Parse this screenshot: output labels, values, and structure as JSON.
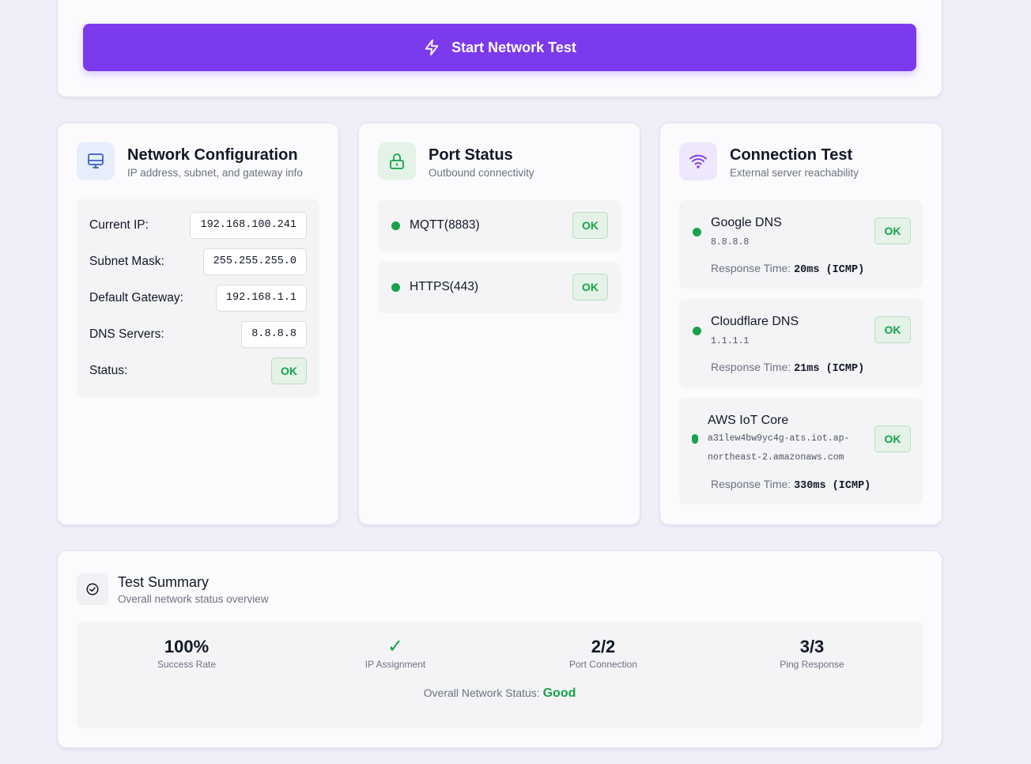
{
  "colors": {
    "accent": "#7c3aed",
    "ok_green": "#16a34a",
    "background": "#f1eef9"
  },
  "start_button": {
    "label": "Start Network Test",
    "icon": "lightning-icon"
  },
  "network_config": {
    "title": "Network Configuration",
    "subtitle": "IP address, subnet, and gateway info",
    "icon": "monitor-icon",
    "rows": [
      {
        "label": "Current IP:",
        "value": "192.168.100.241"
      },
      {
        "label": "Subnet Mask:",
        "value": "255.255.255.0"
      },
      {
        "label": "Default Gateway:",
        "value": "192.168.1.1"
      },
      {
        "label": "DNS Servers:",
        "value": "8.8.8.8"
      },
      {
        "label": "Status:",
        "value": "OK"
      }
    ]
  },
  "port_status": {
    "title": "Port Status",
    "subtitle": "Outbound connectivity",
    "icon": "lock-icon",
    "ports": [
      {
        "label": "MQTT(8883)",
        "status": "OK"
      },
      {
        "label": "HTTPS(443)",
        "status": "OK"
      }
    ]
  },
  "connection_test": {
    "title": "Connection Test",
    "subtitle": "External server reachability",
    "icon": "wifi-icon",
    "servers": [
      {
        "name": "Google DNS",
        "host": "8.8.8.8",
        "host_line2": "",
        "response_label": "Response Time:",
        "response_value": "20ms (ICMP)",
        "status": "OK"
      },
      {
        "name": "Cloudflare DNS",
        "host": "1.1.1.1",
        "host_line2": "",
        "response_label": "Response Time:",
        "response_value": "21ms (ICMP)",
        "status": "OK"
      },
      {
        "name": "AWS IoT Core",
        "host": "a31lew4bw9yc4g-ats.iot.ap-",
        "host_line2": "northeast-2.amazonaws.com",
        "response_label": "Response Time:",
        "response_value": "330ms (ICMP)",
        "status": "OK"
      }
    ]
  },
  "summary": {
    "title": "Test Summary",
    "subtitle": "Overall network status overview",
    "icon": "check-circle-icon",
    "stats": [
      {
        "value": "100%",
        "label": "Success Rate"
      },
      {
        "value": "✓",
        "label": "IP Assignment"
      },
      {
        "value": "2/2",
        "label": "Port Connection"
      },
      {
        "value": "3/3",
        "label": "Ping Response"
      }
    ],
    "overall_label": "Overall Network Status:",
    "overall_value": "Good"
  }
}
